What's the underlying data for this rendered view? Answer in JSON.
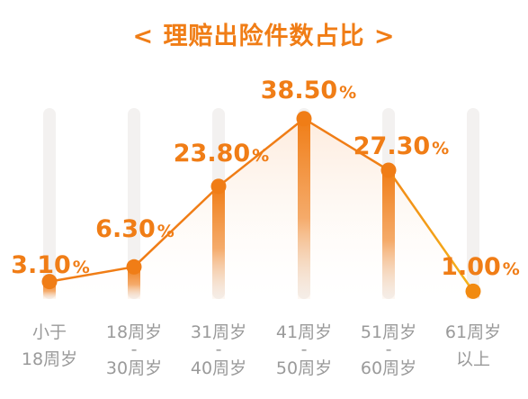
{
  "chart_data": {
    "type": "line",
    "title": "< 理赔出险件数占比 >",
    "categories": [
      [
        "小于",
        "18周岁"
      ],
      [
        "18周岁",
        "-",
        "30周岁"
      ],
      [
        "31周岁",
        "-",
        "40周岁"
      ],
      [
        "41周岁",
        "-",
        "50周岁"
      ],
      [
        "51周岁",
        "-",
        "60周岁"
      ],
      [
        "61周岁",
        "以上"
      ]
    ],
    "values": [
      3.1,
      6.3,
      23.8,
      38.5,
      27.3,
      1.0
    ],
    "value_labels": [
      "3.10",
      "6.30",
      "23.80",
      "38.50",
      "27.30",
      "1.00"
    ],
    "unit": "%",
    "ylim": [
      0,
      40
    ],
    "grid": false,
    "colors": {
      "accent": "#f07d16",
      "line_end": "#f5b51a",
      "track": "#f3f1f0",
      "label": "#9a9a9a"
    }
  }
}
